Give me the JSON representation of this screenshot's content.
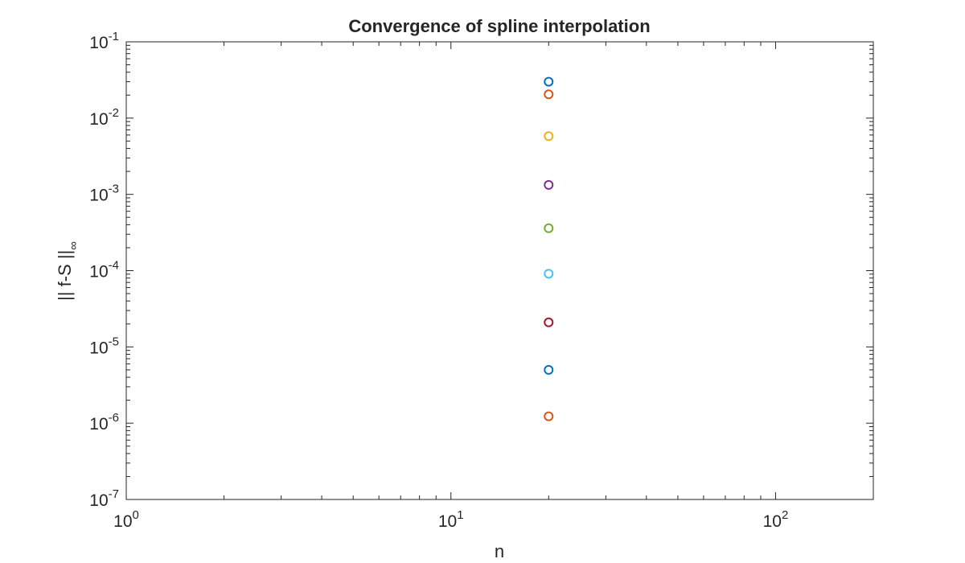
{
  "chart_data": {
    "type": "scatter",
    "title": "Convergence of spline interpolation",
    "xlabel": "n",
    "ylabel": "|| f-S ||",
    "ylabel_subscript": "∞",
    "xscale": "log",
    "yscale": "log",
    "xlim": [
      1,
      200
    ],
    "ylim": [
      1e-07,
      0.1
    ],
    "grid": false,
    "marker": "circle",
    "x_ticks": [
      {
        "value": 1,
        "base": "10",
        "exp": "0"
      },
      {
        "value": 10,
        "base": "10",
        "exp": "1"
      },
      {
        "value": 100,
        "base": "10",
        "exp": "2"
      }
    ],
    "y_ticks": [
      {
        "value": 1e-07,
        "base": "10",
        "exp": "-7"
      },
      {
        "value": 1e-06,
        "base": "10",
        "exp": "-6"
      },
      {
        "value": 1e-05,
        "base": "10",
        "exp": "-5"
      },
      {
        "value": 0.0001,
        "base": "10",
        "exp": "-4"
      },
      {
        "value": 0.001,
        "base": "10",
        "exp": "-3"
      },
      {
        "value": 0.01,
        "base": "10",
        "exp": "-2"
      },
      {
        "value": 0.1,
        "base": "10",
        "exp": "-1"
      }
    ],
    "series": [
      {
        "color": "#0072bd",
        "points": [
          [
            20,
            0.03
          ]
        ]
      },
      {
        "color": "#d95319",
        "points": [
          [
            20,
            0.0205
          ]
        ]
      },
      {
        "color": "#edb120",
        "points": [
          [
            20,
            0.0058
          ]
        ]
      },
      {
        "color": "#7e2f8e",
        "points": [
          [
            20,
            0.00133
          ]
        ]
      },
      {
        "color": "#77ac30",
        "points": [
          [
            20,
            0.00036
          ]
        ]
      },
      {
        "color": "#4dbeee",
        "points": [
          [
            20,
            9.1e-05
          ]
        ]
      },
      {
        "color": "#a2142f",
        "points": [
          [
            20,
            2.1e-05
          ]
        ]
      },
      {
        "color": "#0072bd",
        "points": [
          [
            20,
            5e-06
          ]
        ]
      },
      {
        "color": "#d95319",
        "points": [
          [
            20,
            1.23e-06
          ]
        ]
      }
    ]
  }
}
